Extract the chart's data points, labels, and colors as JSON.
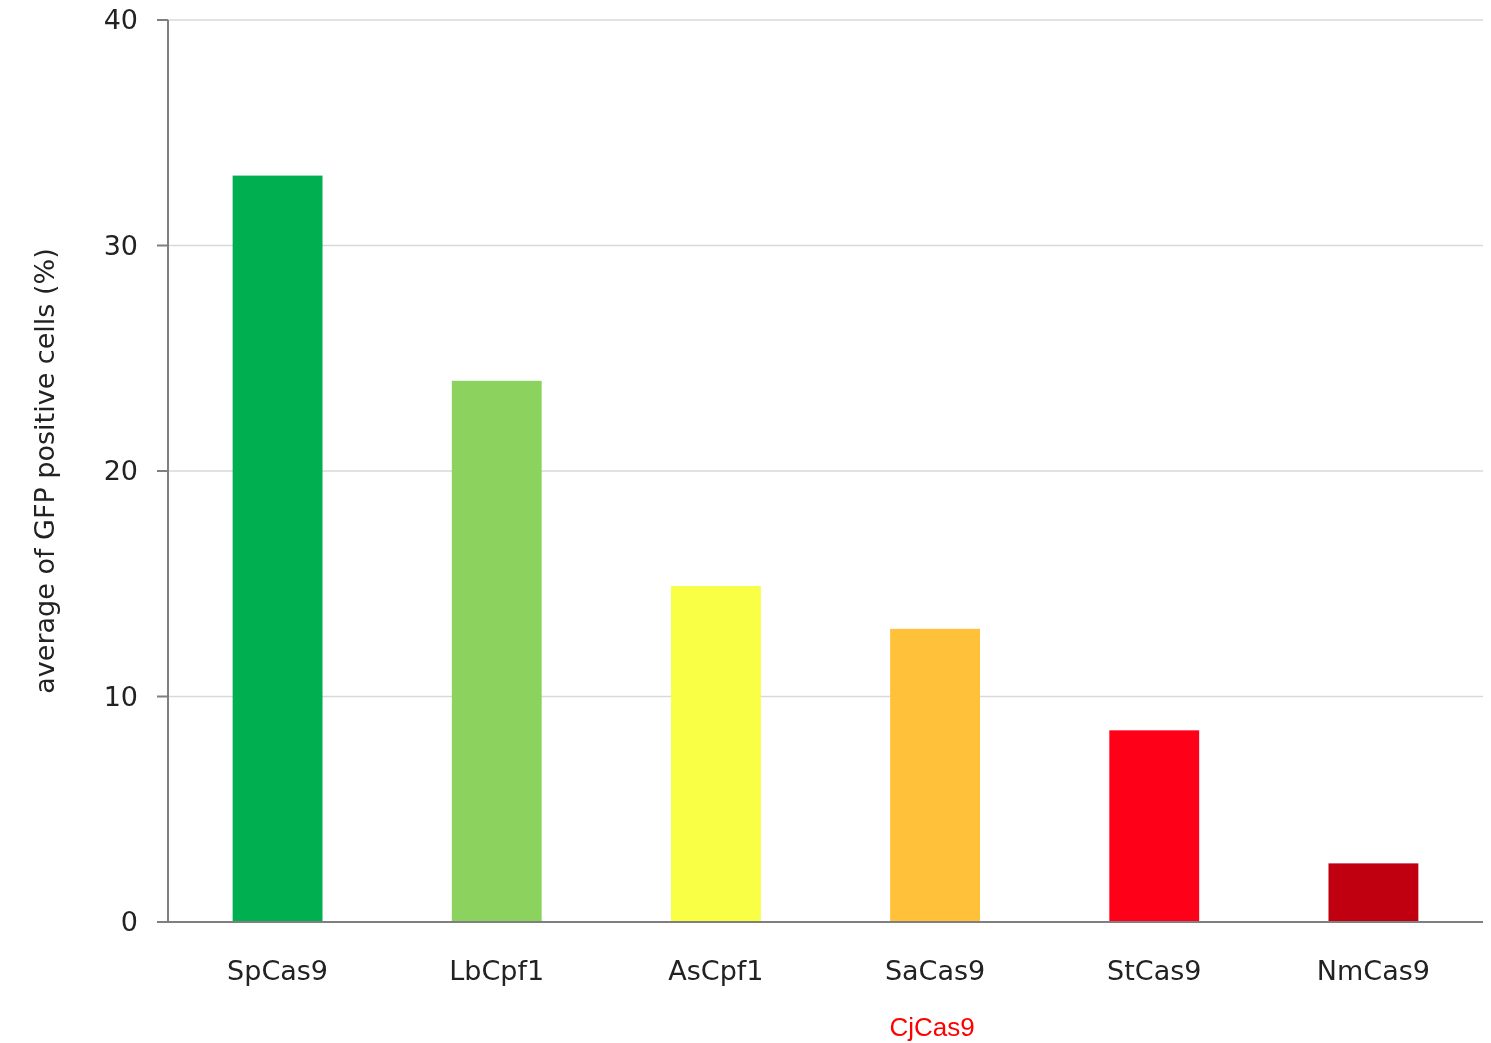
{
  "chart_data": {
    "type": "bar",
    "ylabel": "average of GFP positive cells (%)",
    "categories": [
      "SpCas9",
      "LbCpf1",
      "AsCpf1",
      "SaCas9",
      "StCas9",
      "NmCas9"
    ],
    "values": [
      33.1,
      24,
      14.9,
      13,
      8.5,
      2.6
    ],
    "colors": [
      "#00b050",
      "#8cd25e",
      "#f9ff45",
      "#ffc03a",
      "#ff0019",
      "#c00010"
    ],
    "ylim": [
      0,
      40
    ],
    "yticks": [
      0,
      10,
      20,
      30,
      40
    ],
    "grid": "y",
    "annotations": [
      "CjCas9"
    ]
  }
}
